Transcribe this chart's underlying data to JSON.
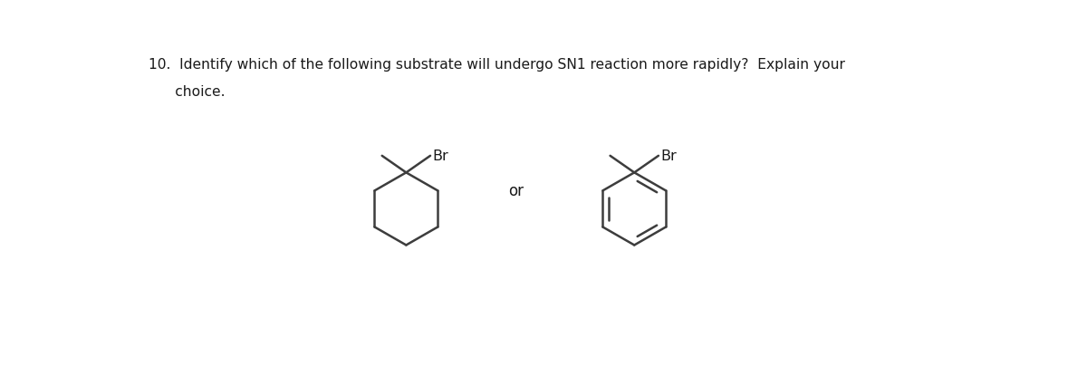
{
  "title_line1": "10.  Identify which of the following substrate will undergo SN1 reaction more rapidly?  Explain your",
  "title_line2": "      choice.",
  "bg_color": "#ffffff",
  "line_color": "#3d3d3d",
  "text_color": "#1a1a1a",
  "br_color": "#1a1a1a",
  "or_color": "#1a1a1a",
  "or_text": "or",
  "br_label": "Br",
  "figsize": [
    12.0,
    4.27
  ],
  "dpi": 100
}
